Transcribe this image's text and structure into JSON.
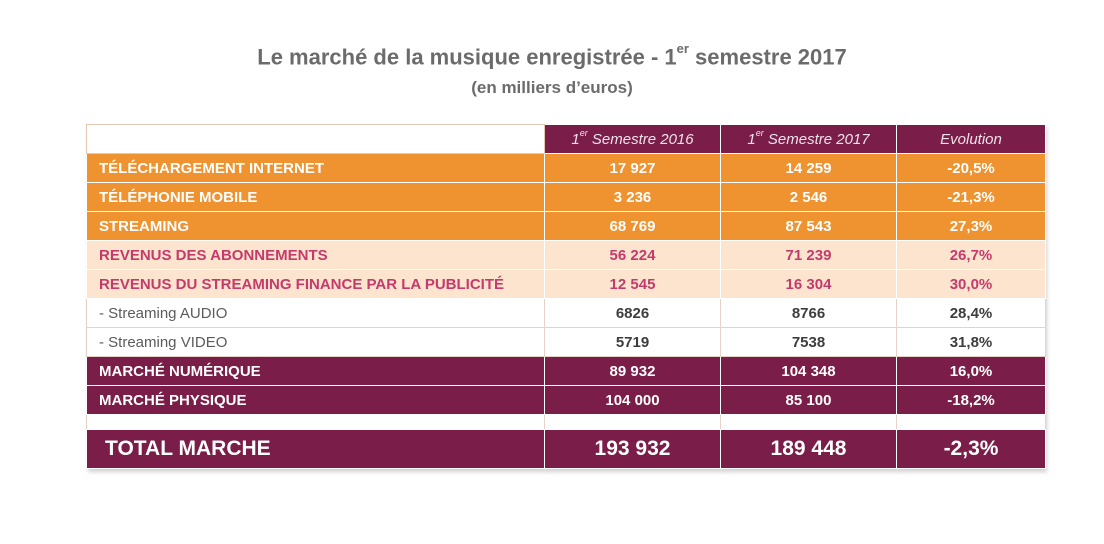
{
  "title": {
    "main": "Le marché de la musique enregistrée - 1",
    "sup": "er",
    "rest": " semestre 2017",
    "subtitle": "(en milliers d’euros)"
  },
  "header": {
    "col1_pre": "1",
    "col1_sup": "er",
    "col1_post": " Semestre 2016",
    "col2_pre": "1",
    "col2_sup": "er",
    "col2_post": " Semestre 2017",
    "col3": "Evolution"
  },
  "colors": {
    "plum": "#7a1d48",
    "orange": "#ee9330",
    "peach": "#fde4cf",
    "pink_text": "#c43a6b"
  },
  "rows": [
    {
      "label": "TÉLÉCHARGEMENT INTERNET",
      "s2016": "17 927",
      "s2017": "14 259",
      "evolution": "-20,5%"
    },
    {
      "label": "TÉLÉPHONIE MOBILE",
      "s2016": "3 236",
      "s2017": "2 546",
      "evolution": "-21,3%"
    },
    {
      "label": "STREAMING",
      "s2016": "68 769",
      "s2017": "87 543",
      "evolution": "27,3%"
    },
    {
      "label": "REVENUS DES ABONNEMENTS",
      "s2016": "56 224",
      "s2017": "71 239",
      "evolution": "26,7%"
    },
    {
      "label": "REVENUS DU STREAMING FINANCE PAR LA PUBLICITÉ",
      "s2016": "12 545",
      "s2017": "16 304",
      "evolution": "30,0%"
    },
    {
      "label": " - Streaming AUDIO",
      "s2016": "6826",
      "s2017": "8766",
      "evolution": "28,4%"
    },
    {
      "label": " - Streaming  VIDEO",
      "s2016": "5719",
      "s2017": "7538",
      "evolution": "31,8%"
    },
    {
      "label": "MARCHÉ NUMÉRIQUE",
      "s2016": "89 932",
      "s2017": "104 348",
      "evolution": "16,0%"
    },
    {
      "label": "MARCHÉ PHYSIQUE",
      "s2016": "104 000",
      "s2017": "85 100",
      "evolution": "-18,2%"
    }
  ],
  "total": {
    "label": "TOTAL MARCHE",
    "s2016": "193 932",
    "s2017": "189 448",
    "evolution": "-2,3%"
  }
}
